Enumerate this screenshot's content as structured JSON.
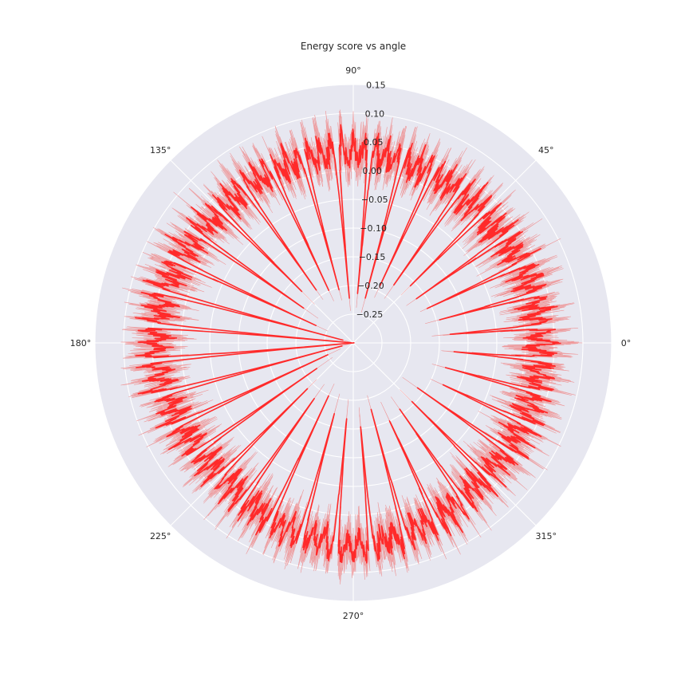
{
  "chart_data": {
    "type": "polar-line",
    "title": "Energy score vs angle",
    "theta_unit": "degrees",
    "angle_ticks": [
      "0°",
      "45°",
      "90°",
      "135°",
      "180°",
      "225°",
      "270°",
      "315°"
    ],
    "radial_ticks": [
      "−0.25",
      "−0.20",
      "−0.15",
      "−0.10",
      "−0.05",
      "0.00",
      "0.05",
      "0.10",
      "0.15"
    ],
    "rlim": [
      -0.3,
      0.15
    ],
    "grid": true,
    "series": [
      {
        "line_color": "#ff2a2a",
        "band_color": "#f08080",
        "spike_count": 36,
        "spike_envelope": [
          {
            "theta": 0,
            "r_max": 0.06,
            "r_min": -0.08
          },
          {
            "theta": 45,
            "r_max": 0.05,
            "r_min": -0.12
          },
          {
            "theta": 90,
            "r_max": 0.07,
            "r_min": -0.18
          },
          {
            "theta": 135,
            "r_max": 0.06,
            "r_min": -0.12
          },
          {
            "theta": 180,
            "r_max": 0.08,
            "r_min": -0.27
          },
          {
            "theta": 225,
            "r_max": 0.06,
            "r_min": -0.14
          },
          {
            "theta": 270,
            "r_max": 0.09,
            "r_min": -0.12
          },
          {
            "theta": 315,
            "r_max": 0.06,
            "r_min": -0.1
          }
        ]
      }
    ]
  }
}
